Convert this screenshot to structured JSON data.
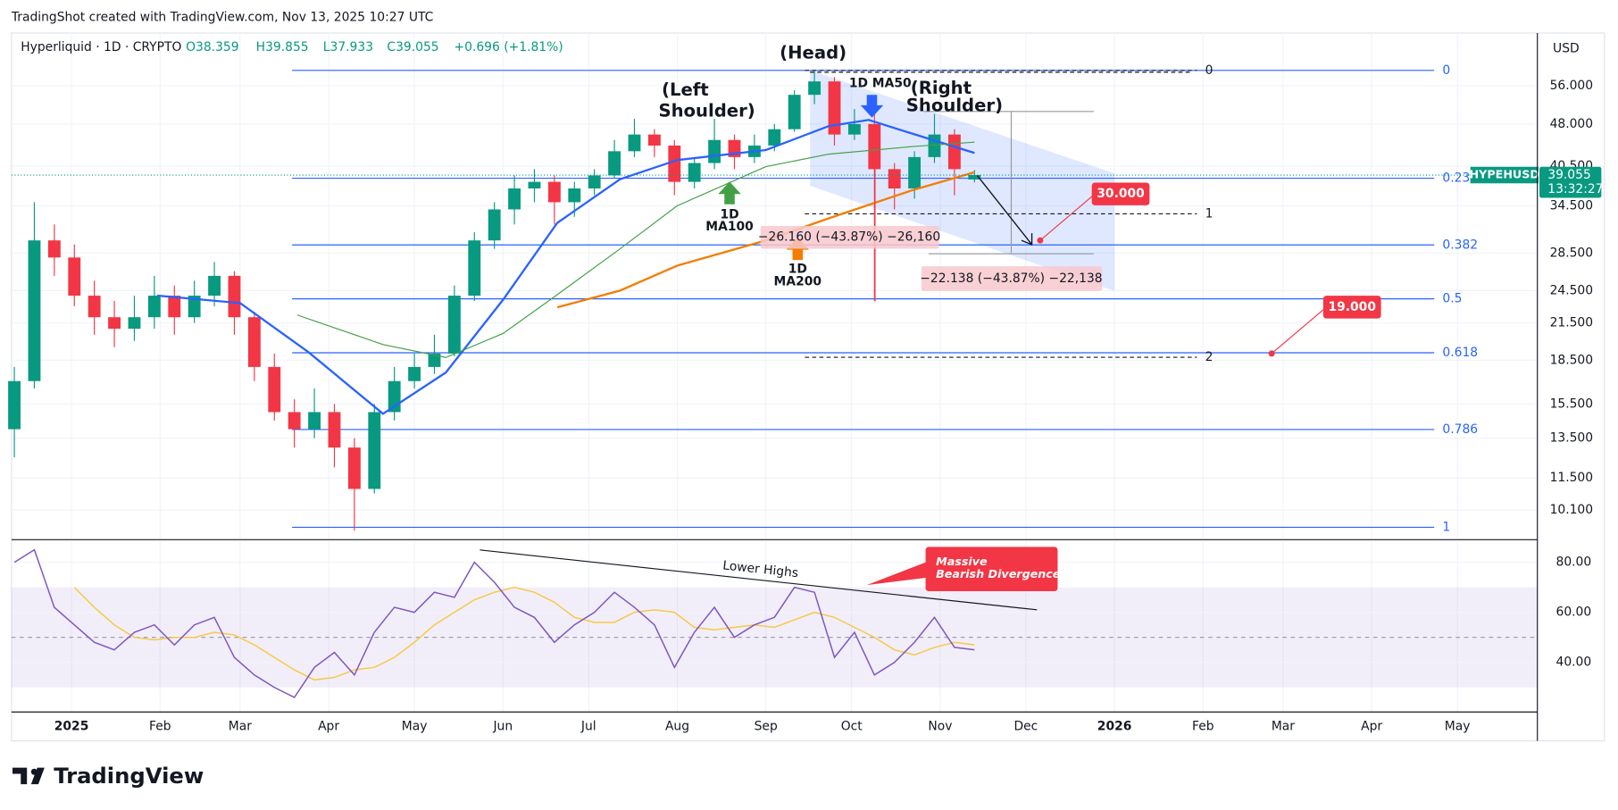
{
  "header": {
    "caption": "TradingShot created with TradingView.com, Nov 13, 2025 10:27 UTC"
  },
  "legend": {
    "symbol": "Hyperliquid · 1D · CRYPTO",
    "open": "O38.359",
    "high": "H39.855",
    "low": "L37.933",
    "close": "C39.055",
    "change": "+0.696 (+1.81%)"
  },
  "currency": "USD",
  "price_tag": {
    "symbol": "HYPEHUSD",
    "value": 39.055,
    "countdown": "13:32:27"
  },
  "footer": {
    "brand": "TradingView"
  },
  "chart_data": [
    {
      "type": "candlestick",
      "log_scale": true,
      "grid": true,
      "x": [
        "2024-12-12",
        "2024-12-19",
        "2024-12-26",
        "2025-01-02",
        "2025-01-09",
        "2025-01-16",
        "2025-01-23",
        "2025-01-30",
        "2025-02-06",
        "2025-02-13",
        "2025-02-20",
        "2025-02-27",
        "2025-03-06",
        "2025-03-13",
        "2025-03-20",
        "2025-03-27",
        "2025-04-03",
        "2025-04-10",
        "2025-04-17",
        "2025-04-24",
        "2025-05-01",
        "2025-05-08",
        "2025-05-15",
        "2025-05-22",
        "2025-05-29",
        "2025-06-05",
        "2025-06-12",
        "2025-06-19",
        "2025-06-26",
        "2025-07-03",
        "2025-07-10",
        "2025-07-17",
        "2025-07-24",
        "2025-07-31",
        "2025-08-07",
        "2025-08-14",
        "2025-08-21",
        "2025-08-28",
        "2025-09-04",
        "2025-09-11",
        "2025-09-18",
        "2025-09-25",
        "2025-10-02",
        "2025-10-09",
        "2025-10-16",
        "2025-10-23",
        "2025-10-30",
        "2025-11-06",
        "2025-11-13"
      ],
      "open": [
        14,
        17,
        30,
        28,
        24,
        22,
        21,
        22,
        24,
        22,
        24,
        26,
        22,
        18,
        15,
        14,
        15,
        13,
        11,
        15,
        17,
        18,
        19,
        24,
        30,
        34,
        37,
        38,
        35,
        37,
        39,
        43,
        46,
        44,
        38,
        41,
        45,
        42,
        44,
        47,
        54,
        57,
        46,
        48,
        40,
        37,
        42,
        46,
        38.359
      ],
      "high": [
        18,
        35,
        32,
        29.5,
        25.5,
        23.5,
        24,
        26,
        25,
        25.5,
        27.5,
        26.5,
        22.5,
        19,
        15.8,
        16.5,
        15.5,
        13.5,
        15.5,
        18,
        19,
        20.5,
        25,
        31,
        35,
        39,
        40,
        39,
        38,
        40,
        45,
        49,
        47,
        45,
        42,
        49,
        46,
        46,
        48,
        55,
        59.4,
        58,
        51,
        50,
        41,
        43,
        50,
        47,
        39.855
      ],
      "low": [
        12.5,
        16.5,
        26,
        23,
        20.5,
        19.5,
        20,
        21,
        20.5,
        21.5,
        23,
        20.5,
        17,
        14.5,
        13,
        13.5,
        12,
        9.3,
        10.8,
        14.5,
        16.5,
        17.5,
        18.8,
        23.5,
        29,
        32,
        35,
        32,
        33,
        36,
        38.5,
        42,
        42,
        36,
        37,
        40,
        40,
        41,
        43,
        46.5,
        52,
        44,
        45,
        23.5,
        34,
        35.5,
        41,
        36,
        37.933
      ],
      "close": [
        17,
        30,
        28,
        24,
        22,
        21,
        22,
        24,
        22,
        24,
        26,
        22,
        18,
        15,
        14,
        15,
        13,
        11,
        15,
        17,
        18,
        19,
        24,
        30,
        34,
        37,
        38,
        35,
        37,
        39,
        43,
        46,
        44,
        38,
        41,
        45,
        42,
        44,
        47,
        54,
        57,
        46,
        48,
        40,
        37,
        42,
        46,
        40,
        39.055
      ],
      "up_color": "#089981",
      "down_color": "#f23645",
      "xlim": [
        "2024-12-11",
        "2026-05-29"
      ],
      "xticks": [
        {
          "value": "2025-01-01",
          "label": "2025"
        },
        {
          "value": "2025-02-01",
          "label": "Feb"
        },
        {
          "value": "2025-03-01",
          "label": "Mar"
        },
        {
          "value": "2025-04-01",
          "label": "Apr"
        },
        {
          "value": "2025-05-01",
          "label": "May"
        },
        {
          "value": "2025-06-01",
          "label": "Jun"
        },
        {
          "value": "2025-07-01",
          "label": "Jul"
        },
        {
          "value": "2025-08-01",
          "label": "Aug"
        },
        {
          "value": "2025-09-01",
          "label": "Sep"
        },
        {
          "value": "2025-10-01",
          "label": "Oct"
        },
        {
          "value": "2025-11-01",
          "label": "Nov"
        },
        {
          "value": "2025-12-01",
          "label": "Dec"
        },
        {
          "value": "2026-01-01",
          "label": "2026"
        },
        {
          "value": "2026-02-01",
          "label": "Feb"
        },
        {
          "value": "2026-03-01",
          "label": "Mar"
        },
        {
          "value": "2026-04-01",
          "label": "Apr"
        },
        {
          "value": "2026-05-01",
          "label": "May"
        }
      ],
      "ylim": [
        9,
        69.3
      ],
      "yticks": [
        {
          "value": 56,
          "label": "56.000"
        },
        {
          "value": 48,
          "label": "48.000"
        },
        {
          "value": 40.5,
          "label": "40.500"
        },
        {
          "value": 34.5,
          "label": "34.500"
        },
        {
          "value": 28.5,
          "label": "28.500"
        },
        {
          "value": 24.5,
          "label": "24.500"
        },
        {
          "value": 21.5,
          "label": "21.500"
        },
        {
          "value": 18.5,
          "label": "18.500"
        },
        {
          "value": 15.5,
          "label": "15.500"
        },
        {
          "value": 13.5,
          "label": "13.500"
        },
        {
          "value": 11.5,
          "label": "11.500"
        },
        {
          "value": 10.1,
          "label": "10.100"
        }
      ],
      "overlays": [
        {
          "color": "#2962ff",
          "x": [
            "2025-01-31",
            "2025-03-01",
            "2025-03-25",
            "2025-04-20",
            "2025-05-12",
            "2025-06-01",
            "2025-06-20",
            "2025-07-12",
            "2025-08-01",
            "2025-09-01",
            "2025-09-23",
            "2025-10-07",
            "2025-10-22",
            "2025-11-13"
          ],
          "values": [
            24,
            23.3,
            19.1,
            14.9,
            17.6,
            23.6,
            32.2,
            38.4,
            41.5,
            43.2,
            47.6,
            48.8,
            46.2,
            42.7
          ]
        },
        {
          "color": "#43a047",
          "x": [
            "2025-03-21",
            "2025-04-20",
            "2025-05-12",
            "2025-06-01",
            "2025-06-20",
            "2025-07-12",
            "2025-08-01",
            "2025-09-01",
            "2025-09-23",
            "2025-10-22",
            "2025-11-13"
          ],
          "values": [
            22.2,
            19.7,
            18.7,
            20.6,
            24.1,
            29,
            34.5,
            40.4,
            42.5,
            43.8,
            44.6
          ]
        },
        {
          "color": "#f57c00",
          "x": [
            "2025-06-20",
            "2025-07-12",
            "2025-08-01",
            "2025-09-01",
            "2025-09-23",
            "2025-10-22",
            "2025-11-13"
          ],
          "values": [
            22.9,
            24.5,
            27.1,
            30,
            32.8,
            36.7,
            39.5
          ]
        }
      ],
      "fib": {
        "color": "#2962ff",
        "high": 59.6,
        "low": 9.42,
        "levels": [
          0,
          0.236,
          0.382,
          0.5,
          0.618,
          0.786,
          1
        ]
      },
      "fib_ext": {
        "p0": 59.6,
        "p1": 33.4,
        "levels": [
          0,
          1,
          2
        ]
      },
      "targets": [
        {
          "value": 30,
          "label": "30.000",
          "date": "2025-12-06"
        },
        {
          "value": 19,
          "label": "19.000",
          "date": "2026-02-25"
        }
      ],
      "annotations": {
        "head": "(Head)",
        "left_shoulder": [
          "(Left",
          "Shoulder)"
        ],
        "right_shoulder": [
          "(Right",
          "Shoulder)"
        ],
        "ma50": "1D MA50",
        "ma100": [
          "1D",
          "MA100"
        ],
        "ma200": [
          "1D",
          "MA200"
        ],
        "measure1": "−26.160 (−43.87%) −26,160",
        "measure2": "−22.138 (−43.87%) −22,138"
      }
    },
    {
      "type": "line",
      "x": [
        "2024-12-12",
        "2024-12-19",
        "2024-12-26",
        "2025-01-02",
        "2025-01-09",
        "2025-01-16",
        "2025-01-23",
        "2025-01-30",
        "2025-02-06",
        "2025-02-13",
        "2025-02-20",
        "2025-02-27",
        "2025-03-06",
        "2025-03-13",
        "2025-03-20",
        "2025-03-27",
        "2025-04-03",
        "2025-04-10",
        "2025-04-17",
        "2025-04-24",
        "2025-05-01",
        "2025-05-08",
        "2025-05-15",
        "2025-05-22",
        "2025-05-29",
        "2025-06-05",
        "2025-06-12",
        "2025-06-19",
        "2025-06-26",
        "2025-07-03",
        "2025-07-10",
        "2025-07-17",
        "2025-07-24",
        "2025-07-31",
        "2025-08-07",
        "2025-08-14",
        "2025-08-21",
        "2025-08-28",
        "2025-09-04",
        "2025-09-11",
        "2025-09-18",
        "2025-09-25",
        "2025-10-02",
        "2025-10-09",
        "2025-10-16",
        "2025-10-23",
        "2025-10-30",
        "2025-11-06",
        "2025-11-13"
      ],
      "series": [
        {
          "color": "#7e57c2",
          "values": [
            80,
            85,
            62,
            55,
            48,
            45,
            52,
            55,
            47,
            55,
            58,
            42,
            35,
            30,
            26,
            38,
            44,
            35,
            52,
            62,
            60,
            68,
            66,
            80,
            72,
            62,
            58,
            48,
            55,
            60,
            68,
            62,
            55,
            38,
            52,
            62,
            50,
            55,
            58,
            70,
            68,
            42,
            52,
            35,
            40,
            48,
            58,
            46,
            45
          ]
        },
        {
          "color": "#f7c948",
          "values": [
            null,
            null,
            null,
            70,
            62,
            55,
            50,
            49,
            50,
            50,
            52,
            51,
            47,
            42,
            37,
            33,
            34,
            37,
            38,
            42,
            48,
            55,
            60,
            65,
            68,
            70,
            68,
            64,
            58,
            56,
            56,
            60,
            61,
            60,
            54,
            53,
            54,
            55,
            54,
            57,
            60,
            58,
            54,
            50,
            45,
            43,
            46,
            48,
            47
          ]
        }
      ],
      "xlim": [
        "2024-12-11",
        "2026-05-29"
      ],
      "ylim": [
        20.2,
        88.2
      ],
      "yticks": [
        {
          "value": 80,
          "label": "80.00"
        },
        {
          "value": 60,
          "label": "60.00"
        },
        {
          "value": 40,
          "label": "40.00"
        }
      ],
      "band": [
        30,
        70
      ],
      "midline": 50,
      "annotations": {
        "trend": "Lower Highs",
        "callout": [
          "Massive",
          "Bearish Divergence"
        ]
      }
    }
  ]
}
